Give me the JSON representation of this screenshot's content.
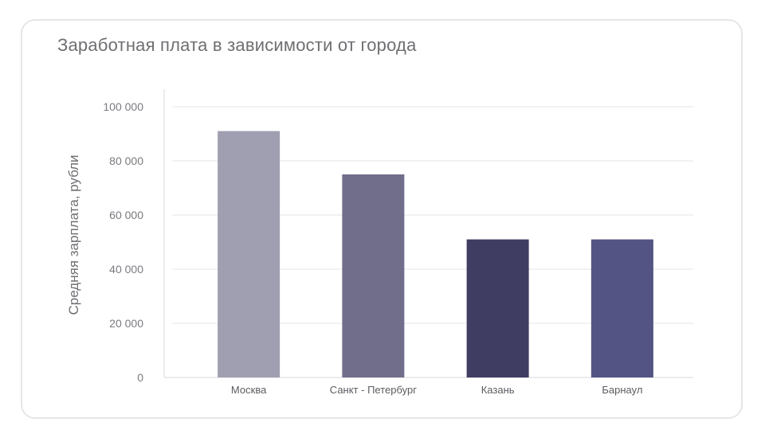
{
  "chart_data": {
    "type": "bar",
    "title": "Заработная плата в зависимости от города",
    "xlabel": "",
    "ylabel": "Средняя зарплата, рубли",
    "categories": [
      "Москва",
      "Санкт - Петербург",
      "Казань",
      "Барнаул"
    ],
    "values": [
      91000,
      75000,
      51000,
      51000
    ],
    "colors": [
      "#a09fb1",
      "#716e8b",
      "#3f3d61",
      "#535484"
    ],
    "ylim": [
      0,
      100000
    ],
    "yticks": [
      0,
      20000,
      40000,
      60000,
      80000,
      100000
    ],
    "ytick_labels": [
      "0",
      "20 000",
      "40 000",
      "60 000",
      "80 000",
      "100 000"
    ],
    "grid": true,
    "legend": "none"
  }
}
